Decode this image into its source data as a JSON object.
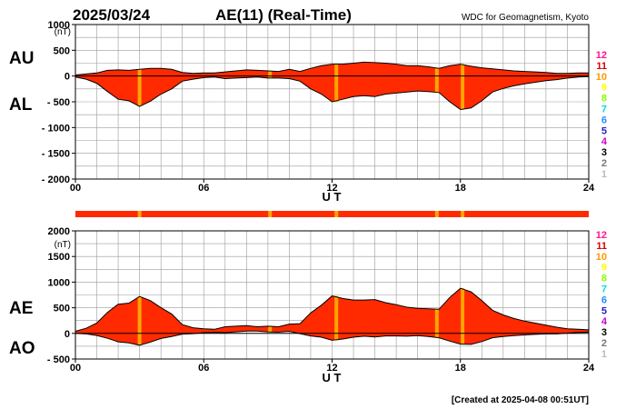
{
  "header": {
    "date": "2025/03/24",
    "title": "AE(11) (Real-Time)",
    "source": "WDC for Geomagnetism, Kyoto"
  },
  "footer": {
    "created": "[Created at 2025-04-08 00:51UT]"
  },
  "colors": {
    "fill": "#ff2a00",
    "highlight": "#ffa500",
    "axis": "#000000",
    "grid": "#9a9a9a"
  },
  "station_scale": [
    {
      "label": "12",
      "color": "#ff1493"
    },
    {
      "label": "11",
      "color": "#dd0000"
    },
    {
      "label": "10",
      "color": "#ff9900"
    },
    {
      "label": "9",
      "color": "#ffff00"
    },
    {
      "label": "8",
      "color": "#88ff00"
    },
    {
      "label": "7",
      "color": "#00dddd"
    },
    {
      "label": "6",
      "color": "#1e90ff"
    },
    {
      "label": "5",
      "color": "#2222cc"
    },
    {
      "label": "4",
      "color": "#cc00cc"
    },
    {
      "label": "3",
      "color": "#000000"
    },
    {
      "label": "2",
      "color": "#777777"
    },
    {
      "label": "1",
      "color": "#bbbbbb"
    }
  ],
  "chart_data": [
    {
      "type": "area",
      "panel": "AU/AL",
      "upper_label": "AU",
      "lower_label": "AL",
      "unit": "(nT)",
      "xlabel": "U T",
      "xlim": [
        0,
        24
      ],
      "x_ticks": [
        "00",
        "06",
        "12",
        "18",
        "24"
      ],
      "ylim": [
        -2000,
        1000
      ],
      "y_ticks": [
        1000,
        500,
        0,
        -500,
        -1000,
        -1500,
        -2000
      ],
      "y_tick_labels": [
        "1000",
        "500",
        "0",
        "- 500",
        "- 1000",
        "- 1500",
        "- 2000"
      ],
      "x": [
        0,
        0.5,
        1,
        1.5,
        2,
        2.5,
        3,
        3.5,
        4,
        4.5,
        5,
        5.5,
        6,
        6.5,
        7,
        7.5,
        8,
        8.5,
        9,
        9.5,
        10,
        10.5,
        11,
        11.5,
        12,
        12.5,
        13,
        13.5,
        14,
        14.5,
        15,
        15.5,
        16,
        16.5,
        17,
        17.5,
        18,
        18.5,
        19,
        19.5,
        20,
        20.5,
        21,
        21.5,
        22,
        22.5,
        23,
        23.5,
        24
      ],
      "series": [
        {
          "name": "AU",
          "values": [
            20,
            40,
            60,
            110,
            120,
            110,
            130,
            150,
            150,
            130,
            70,
            50,
            60,
            60,
            80,
            100,
            120,
            110,
            100,
            90,
            130,
            90,
            150,
            200,
            230,
            230,
            250,
            270,
            260,
            250,
            230,
            200,
            200,
            180,
            150,
            200,
            230,
            190,
            160,
            140,
            120,
            100,
            90,
            80,
            70,
            50,
            50,
            60,
            60
          ]
        },
        {
          "name": "AL",
          "values": [
            -20,
            -60,
            -140,
            -300,
            -450,
            -480,
            -590,
            -490,
            -350,
            -250,
            -100,
            -60,
            -30,
            -20,
            -50,
            -40,
            -30,
            -20,
            -40,
            -40,
            -50,
            -100,
            -250,
            -350,
            -500,
            -450,
            -400,
            -380,
            -400,
            -350,
            -330,
            -310,
            -290,
            -300,
            -320,
            -500,
            -650,
            -620,
            -480,
            -310,
            -240,
            -190,
            -150,
            -120,
            -90,
            -70,
            -40,
            -20,
            -10
          ]
        }
      ],
      "highlights_ut": [
        3.0,
        9.1,
        12.2,
        16.9,
        18.1
      ]
    },
    {
      "type": "area",
      "panel": "AE/AO",
      "upper_label": "AE",
      "lower_label": "AO",
      "unit": "(nT)",
      "xlabel": "U T",
      "xlim": [
        0,
        24
      ],
      "x_ticks": [
        "00",
        "06",
        "12",
        "18",
        "24"
      ],
      "ylim": [
        -500,
        2000
      ],
      "y_ticks": [
        2000,
        1500,
        1000,
        500,
        0,
        -500
      ],
      "y_tick_labels": [
        "2000",
        "1500",
        "1000",
        "500",
        "0",
        "- 500"
      ],
      "x": [
        0,
        0.5,
        1,
        1.5,
        2,
        2.5,
        3,
        3.5,
        4,
        4.5,
        5,
        5.5,
        6,
        6.5,
        7,
        7.5,
        8,
        8.5,
        9,
        9.5,
        10,
        10.5,
        11,
        11.5,
        12,
        12.5,
        13,
        13.5,
        14,
        14.5,
        15,
        15.5,
        16,
        16.5,
        17,
        17.5,
        18,
        18.5,
        19,
        19.5,
        20,
        20.5,
        21,
        21.5,
        22,
        22.5,
        23,
        23.5,
        24
      ],
      "series": [
        {
          "name": "AE",
          "values": [
            40,
            100,
            200,
            410,
            570,
            590,
            720,
            640,
            500,
            380,
            170,
            110,
            90,
            80,
            130,
            140,
            150,
            130,
            140,
            130,
            180,
            190,
            400,
            550,
            730,
            680,
            650,
            650,
            660,
            600,
            560,
            510,
            490,
            480,
            470,
            700,
            880,
            810,
            640,
            450,
            360,
            290,
            240,
            200,
            160,
            120,
            90,
            80,
            70
          ]
        },
        {
          "name": "AO",
          "values": [
            0,
            -10,
            -40,
            -95,
            -165,
            -185,
            -230,
            -170,
            -100,
            -60,
            -15,
            -5,
            15,
            20,
            15,
            30,
            45,
            45,
            30,
            25,
            40,
            -5,
            -50,
            -75,
            -135,
            -110,
            -75,
            -55,
            -70,
            -50,
            -50,
            -55,
            -45,
            -60,
            -85,
            -150,
            -210,
            -215,
            -160,
            -85,
            -60,
            -45,
            -30,
            -20,
            -10,
            -10,
            5,
            20,
            25
          ]
        }
      ],
      "highlights_ut": [
        3.0,
        9.1,
        12.2,
        16.9,
        18.1
      ]
    }
  ]
}
